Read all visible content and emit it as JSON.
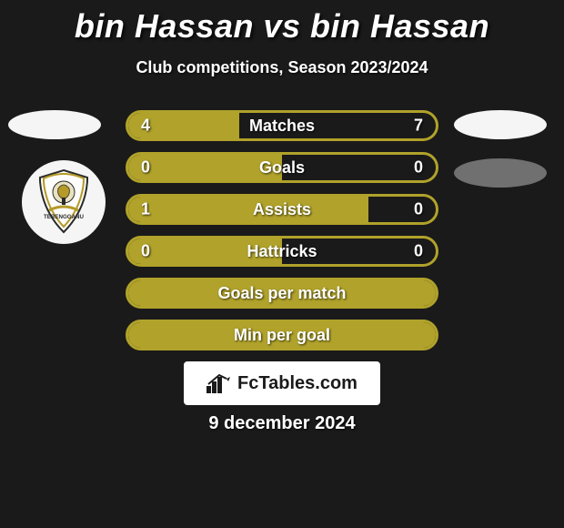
{
  "title": "bin Hassan vs bin Hassan",
  "subtitle": "Club competitions, Season 2023/2024",
  "date": "9 december 2024",
  "colors": {
    "background": "#1a1a1a",
    "accent": "#b0a22a",
    "accent_light": "#c8bb4a",
    "text": "#ffffff",
    "white": "#f5f5f5",
    "grey": "#707070"
  },
  "branding": {
    "text": "FcTables.com"
  },
  "rows": [
    {
      "label": "Matches",
      "left": "4",
      "right": "7",
      "left_pct": 36,
      "right_pct": 64,
      "border": "#b0a22a",
      "left_fill": "#b0a22a",
      "right_fill": "rgba(0,0,0,0)"
    },
    {
      "label": "Goals",
      "left": "0",
      "right": "0",
      "left_pct": 50,
      "right_pct": 50,
      "border": "#b0a22a",
      "left_fill": "#b0a22a",
      "right_fill": "rgba(0,0,0,0)"
    },
    {
      "label": "Assists",
      "left": "1",
      "right": "0",
      "left_pct": 78,
      "right_pct": 22,
      "border": "#b0a22a",
      "left_fill": "#b0a22a",
      "right_fill": "rgba(0,0,0,0)"
    },
    {
      "label": "Hattricks",
      "left": "0",
      "right": "0",
      "left_pct": 50,
      "right_pct": 50,
      "border": "#b0a22a",
      "left_fill": "#b0a22a",
      "right_fill": "rgba(0,0,0,0)"
    },
    {
      "label": "Goals per match",
      "left": "",
      "right": "",
      "left_pct": 100,
      "right_pct": 0,
      "border": "#b0a22a",
      "left_fill": "#b0a22a",
      "right_fill": "rgba(0,0,0,0)"
    },
    {
      "label": "Min per goal",
      "left": "",
      "right": "",
      "left_pct": 100,
      "right_pct": 0,
      "border": "#b0a22a",
      "left_fill": "#b0a22a",
      "right_fill": "rgba(0,0,0,0)"
    }
  ]
}
